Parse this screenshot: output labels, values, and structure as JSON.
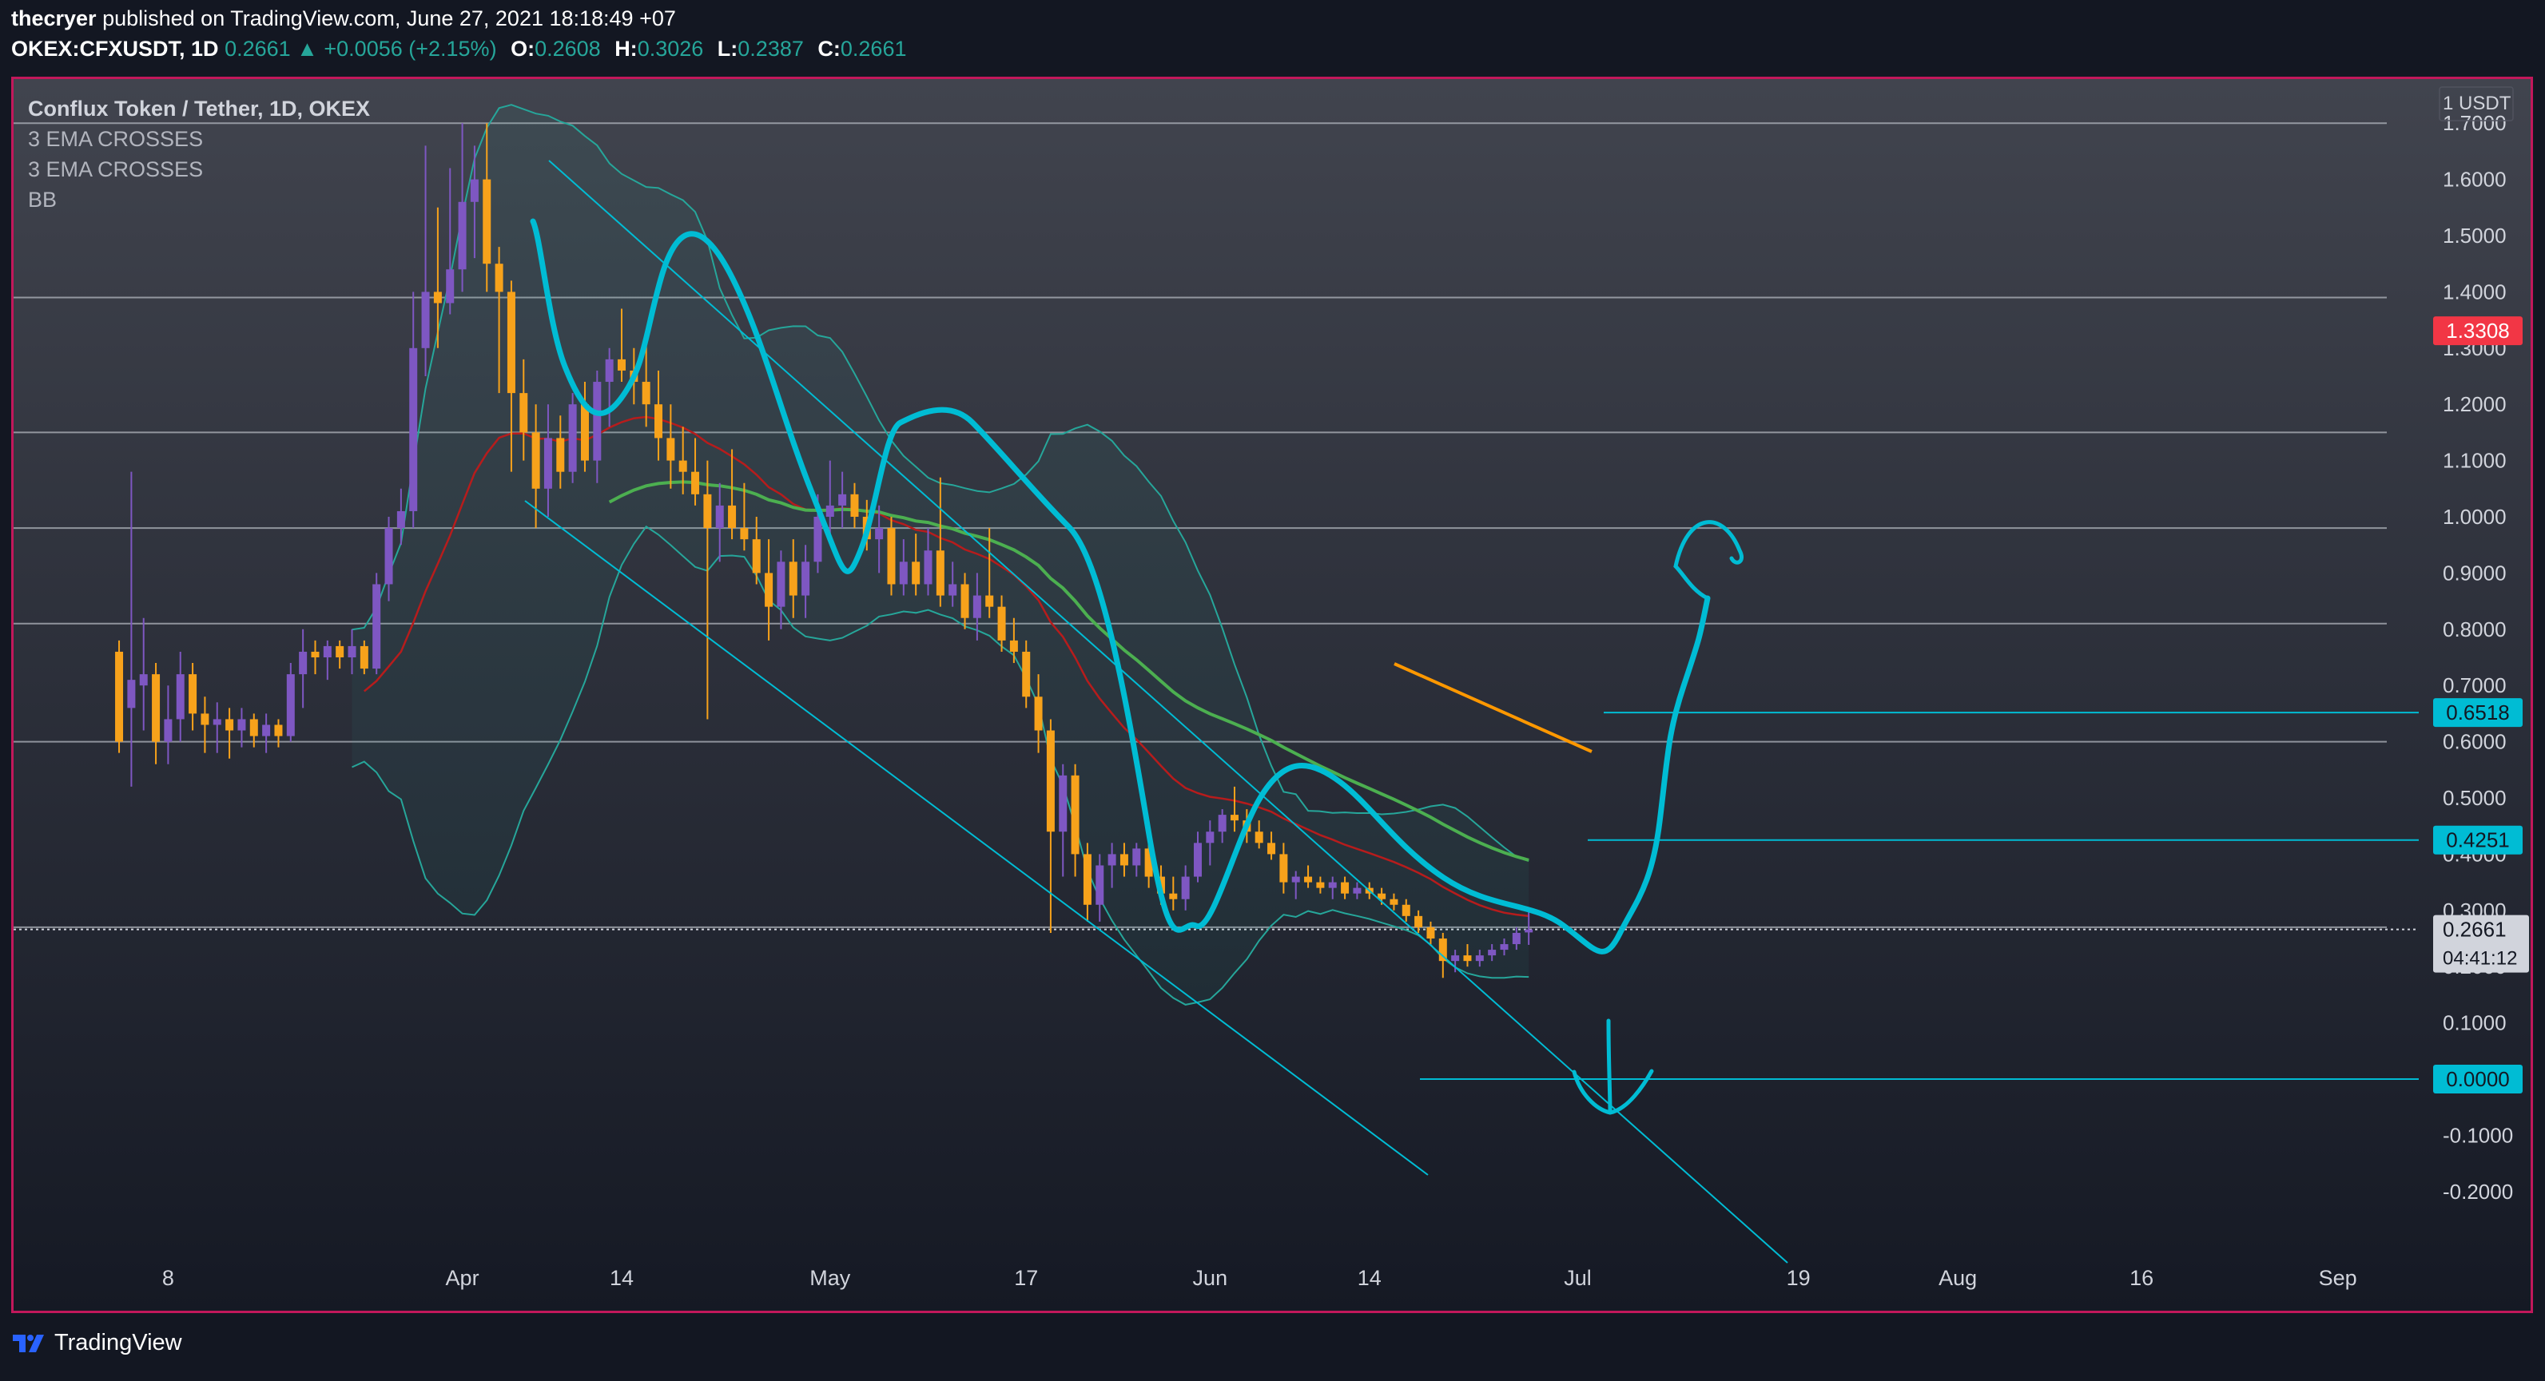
{
  "header": {
    "author": "thecryer",
    "published": " published on TradingView.com, June 27, 2021 18:18:49 +07",
    "symbol": "OKEX:CFXUSDT, 1D",
    "last": "0.2661",
    "change": "▲ +0.0056 (+2.15%)",
    "o_label": "O:",
    "o_value": "0.2608",
    "h_label": "H:",
    "h_value": "0.3026",
    "l_label": "L:",
    "l_value": "0.2387",
    "c_label": "C:",
    "c_value": "0.2661"
  },
  "legend": {
    "title": "Conflux Token / Tether, 1D, OKEX",
    "ind1": "3 EMA CROSSES",
    "ind2": "3 EMA CROSSES",
    "ind3": "BB"
  },
  "footer": {
    "brand": "TradingView"
  },
  "colors": {
    "bg_top": "#3b3e48",
    "bg_bottom": "#131722",
    "frame": "#c2185b",
    "candle_up": "#7e57c2",
    "candle_down": "#f7a21b",
    "drawing": "#00bcd4",
    "ema_green": "#4caf50",
    "ema_red": "#b71c1c",
    "bb": "#26a69a",
    "orange_line": "#ff9800",
    "red_label": "#f23645"
  },
  "chart_data": {
    "type": "candlestick",
    "title": "Conflux Token / Tether, 1D, OKEX",
    "currency_label": "USDT",
    "scale_label": "1",
    "ylim": [
      -0.24,
      1.78
    ],
    "y_ticks": [
      "1.7000",
      "1.6000",
      "1.5000",
      "1.4000",
      "1.3000",
      "1.2000",
      "1.1000",
      "1.0000",
      "0.9000",
      "0.8000",
      "0.7000",
      "0.6000",
      "0.5000",
      "0.4000",
      "0.3000",
      "0.2000",
      "0.1000",
      "0.0000",
      "-0.1000",
      "-0.2000"
    ],
    "x_ticks": [
      {
        "label": "8",
        "date": "2021-03-08"
      },
      {
        "label": "Apr",
        "date": "2021-04-01"
      },
      {
        "label": "14",
        "date": "2021-04-14"
      },
      {
        "label": "May",
        "date": "2021-05-01"
      },
      {
        "label": "17",
        "date": "2021-05-17"
      },
      {
        "label": "Jun",
        "date": "2021-06-01"
      },
      {
        "label": "14",
        "date": "2021-06-14"
      },
      {
        "label": "Jul",
        "date": "2021-07-01"
      },
      {
        "label": "19",
        "date": "2021-07-19"
      },
      {
        "label": "Aug",
        "date": "2021-08-01"
      },
      {
        "label": "16",
        "date": "2021-08-16"
      },
      {
        "label": "Sep",
        "date": "2021-09-01"
      }
    ],
    "x_range": [
      "2021-02-26",
      "2021-09-05"
    ],
    "last_price": "0.2661",
    "countdown": "04:41:12",
    "price_labels": [
      {
        "value": 1.3308,
        "text": "1.3308",
        "style": "red"
      },
      {
        "value": 0.6518,
        "text": "0.6518",
        "style": "cyan"
      },
      {
        "value": 0.4251,
        "text": "0.4251",
        "style": "cyan"
      },
      {
        "value": 0.0,
        "text": "0.0000",
        "style": "cyan"
      }
    ],
    "horizontal_levels": [
      1.7,
      1.39,
      1.15,
      0.98,
      0.81,
      0.6,
      0.27
    ],
    "candles": [
      {
        "d": "2021-03-04",
        "o": 0.76,
        "h": 0.78,
        "l": 0.58,
        "c": 0.6
      },
      {
        "d": "2021-03-05",
        "o": 0.66,
        "h": 1.08,
        "l": 0.52,
        "c": 0.71
      },
      {
        "d": "2021-03-06",
        "o": 0.7,
        "h": 0.82,
        "l": 0.62,
        "c": 0.72
      },
      {
        "d": "2021-03-07",
        "o": 0.72,
        "h": 0.74,
        "l": 0.56,
        "c": 0.6
      },
      {
        "d": "2021-03-08",
        "o": 0.6,
        "h": 0.7,
        "l": 0.56,
        "c": 0.64
      },
      {
        "d": "2021-03-09",
        "o": 0.64,
        "h": 0.76,
        "l": 0.6,
        "c": 0.72
      },
      {
        "d": "2021-03-10",
        "o": 0.72,
        "h": 0.74,
        "l": 0.62,
        "c": 0.65
      },
      {
        "d": "2021-03-11",
        "o": 0.65,
        "h": 0.68,
        "l": 0.58,
        "c": 0.63
      },
      {
        "d": "2021-03-12",
        "o": 0.63,
        "h": 0.67,
        "l": 0.58,
        "c": 0.64
      },
      {
        "d": "2021-03-13",
        "o": 0.64,
        "h": 0.66,
        "l": 0.57,
        "c": 0.62
      },
      {
        "d": "2021-03-14",
        "o": 0.62,
        "h": 0.66,
        "l": 0.59,
        "c": 0.64
      },
      {
        "d": "2021-03-15",
        "o": 0.64,
        "h": 0.65,
        "l": 0.59,
        "c": 0.61
      },
      {
        "d": "2021-03-16",
        "o": 0.61,
        "h": 0.65,
        "l": 0.58,
        "c": 0.63
      },
      {
        "d": "2021-03-17",
        "o": 0.63,
        "h": 0.64,
        "l": 0.59,
        "c": 0.61
      },
      {
        "d": "2021-03-18",
        "o": 0.61,
        "h": 0.74,
        "l": 0.6,
        "c": 0.72
      },
      {
        "d": "2021-03-19",
        "o": 0.72,
        "h": 0.8,
        "l": 0.66,
        "c": 0.76
      },
      {
        "d": "2021-03-20",
        "o": 0.76,
        "h": 0.78,
        "l": 0.72,
        "c": 0.75
      },
      {
        "d": "2021-03-21",
        "o": 0.75,
        "h": 0.78,
        "l": 0.71,
        "c": 0.77
      },
      {
        "d": "2021-03-22",
        "o": 0.77,
        "h": 0.78,
        "l": 0.73,
        "c": 0.75
      },
      {
        "d": "2021-03-23",
        "o": 0.75,
        "h": 0.8,
        "l": 0.72,
        "c": 0.77
      },
      {
        "d": "2021-03-24",
        "o": 0.77,
        "h": 0.78,
        "l": 0.72,
        "c": 0.73
      },
      {
        "d": "2021-03-25",
        "o": 0.73,
        "h": 0.9,
        "l": 0.72,
        "c": 0.88
      },
      {
        "d": "2021-03-26",
        "o": 0.88,
        "h": 1.0,
        "l": 0.85,
        "c": 0.98
      },
      {
        "d": "2021-03-27",
        "o": 0.98,
        "h": 1.05,
        "l": 0.95,
        "c": 1.01
      },
      {
        "d": "2021-03-28",
        "o": 1.01,
        "h": 1.4,
        "l": 0.98,
        "c": 1.3
      },
      {
        "d": "2021-03-29",
        "o": 1.3,
        "h": 1.66,
        "l": 1.25,
        "c": 1.4
      },
      {
        "d": "2021-03-30",
        "o": 1.4,
        "h": 1.55,
        "l": 1.3,
        "c": 1.38
      },
      {
        "d": "2021-03-31",
        "o": 1.38,
        "h": 1.62,
        "l": 1.36,
        "c": 1.44
      },
      {
        "d": "2021-04-01",
        "o": 1.44,
        "h": 1.7,
        "l": 1.4,
        "c": 1.56
      },
      {
        "d": "2021-04-02",
        "o": 1.56,
        "h": 1.66,
        "l": 1.46,
        "c": 1.6
      },
      {
        "d": "2021-04-03",
        "o": 1.6,
        "h": 1.7,
        "l": 1.4,
        "c": 1.45
      },
      {
        "d": "2021-04-04",
        "o": 1.45,
        "h": 1.48,
        "l": 1.22,
        "c": 1.4
      },
      {
        "d": "2021-04-05",
        "o": 1.4,
        "h": 1.42,
        "l": 1.08,
        "c": 1.22
      },
      {
        "d": "2021-04-06",
        "o": 1.22,
        "h": 1.28,
        "l": 1.1,
        "c": 1.15
      },
      {
        "d": "2021-04-07",
        "o": 1.15,
        "h": 1.2,
        "l": 0.98,
        "c": 1.05
      },
      {
        "d": "2021-04-08",
        "o": 1.05,
        "h": 1.2,
        "l": 1.0,
        "c": 1.14
      },
      {
        "d": "2021-04-09",
        "o": 1.14,
        "h": 1.18,
        "l": 1.05,
        "c": 1.08
      },
      {
        "d": "2021-04-10",
        "o": 1.08,
        "h": 1.22,
        "l": 1.06,
        "c": 1.2
      },
      {
        "d": "2021-04-11",
        "o": 1.2,
        "h": 1.24,
        "l": 1.08,
        "c": 1.1
      },
      {
        "d": "2021-04-12",
        "o": 1.1,
        "h": 1.26,
        "l": 1.06,
        "c": 1.24
      },
      {
        "d": "2021-04-13",
        "o": 1.24,
        "h": 1.3,
        "l": 1.16,
        "c": 1.28
      },
      {
        "d": "2021-04-14",
        "o": 1.28,
        "h": 1.37,
        "l": 1.24,
        "c": 1.26
      },
      {
        "d": "2021-04-15",
        "o": 1.26,
        "h": 1.3,
        "l": 1.2,
        "c": 1.24
      },
      {
        "d": "2021-04-16",
        "o": 1.24,
        "h": 1.32,
        "l": 1.16,
        "c": 1.2
      },
      {
        "d": "2021-04-17",
        "o": 1.2,
        "h": 1.26,
        "l": 1.1,
        "c": 1.14
      },
      {
        "d": "2021-04-18",
        "o": 1.14,
        "h": 1.2,
        "l": 1.05,
        "c": 1.1
      },
      {
        "d": "2021-04-19",
        "o": 1.1,
        "h": 1.16,
        "l": 1.04,
        "c": 1.08
      },
      {
        "d": "2021-04-20",
        "o": 1.08,
        "h": 1.14,
        "l": 1.02,
        "c": 1.04
      },
      {
        "d": "2021-04-21",
        "o": 1.04,
        "h": 1.1,
        "l": 0.64,
        "c": 0.98
      },
      {
        "d": "2021-04-22",
        "o": 0.98,
        "h": 1.06,
        "l": 0.92,
        "c": 1.02
      },
      {
        "d": "2021-04-23",
        "o": 1.02,
        "h": 1.12,
        "l": 0.96,
        "c": 0.98
      },
      {
        "d": "2021-04-24",
        "o": 0.98,
        "h": 1.06,
        "l": 0.94,
        "c": 0.96
      },
      {
        "d": "2021-04-25",
        "o": 0.96,
        "h": 1.0,
        "l": 0.88,
        "c": 0.9
      },
      {
        "d": "2021-04-26",
        "o": 0.9,
        "h": 0.96,
        "l": 0.78,
        "c": 0.84
      },
      {
        "d": "2021-04-27",
        "o": 0.84,
        "h": 0.94,
        "l": 0.8,
        "c": 0.92
      },
      {
        "d": "2021-04-28",
        "o": 0.92,
        "h": 0.96,
        "l": 0.82,
        "c": 0.86
      },
      {
        "d": "2021-04-29",
        "o": 0.86,
        "h": 0.95,
        "l": 0.82,
        "c": 0.92
      },
      {
        "d": "2021-04-30",
        "o": 0.92,
        "h": 1.04,
        "l": 0.9,
        "c": 1.0
      },
      {
        "d": "2021-05-01",
        "o": 1.0,
        "h": 1.1,
        "l": 0.96,
        "c": 1.02
      },
      {
        "d": "2021-05-02",
        "o": 1.02,
        "h": 1.08,
        "l": 0.98,
        "c": 1.04
      },
      {
        "d": "2021-05-03",
        "o": 1.04,
        "h": 1.06,
        "l": 0.98,
        "c": 1.0
      },
      {
        "d": "2021-05-04",
        "o": 1.0,
        "h": 1.03,
        "l": 0.94,
        "c": 0.96
      },
      {
        "d": "2021-05-05",
        "o": 0.96,
        "h": 1.02,
        "l": 0.9,
        "c": 0.98
      },
      {
        "d": "2021-05-06",
        "o": 0.98,
        "h": 1.0,
        "l": 0.86,
        "c": 0.88
      },
      {
        "d": "2021-05-07",
        "o": 0.88,
        "h": 0.96,
        "l": 0.86,
        "c": 0.92
      },
      {
        "d": "2021-05-08",
        "o": 0.92,
        "h": 0.97,
        "l": 0.86,
        "c": 0.88
      },
      {
        "d": "2021-05-09",
        "o": 0.88,
        "h": 0.98,
        "l": 0.86,
        "c": 0.94
      },
      {
        "d": "2021-05-10",
        "o": 0.94,
        "h": 1.07,
        "l": 0.84,
        "c": 0.86
      },
      {
        "d": "2021-05-11",
        "o": 0.86,
        "h": 0.92,
        "l": 0.84,
        "c": 0.88
      },
      {
        "d": "2021-05-12",
        "o": 0.88,
        "h": 0.9,
        "l": 0.8,
        "c": 0.82
      },
      {
        "d": "2021-05-13",
        "o": 0.82,
        "h": 0.9,
        "l": 0.78,
        "c": 0.86
      },
      {
        "d": "2021-05-14",
        "o": 0.86,
        "h": 0.98,
        "l": 0.82,
        "c": 0.84
      },
      {
        "d": "2021-05-15",
        "o": 0.84,
        "h": 0.86,
        "l": 0.76,
        "c": 0.78
      },
      {
        "d": "2021-05-16",
        "o": 0.78,
        "h": 0.82,
        "l": 0.74,
        "c": 0.76
      },
      {
        "d": "2021-05-17",
        "o": 0.76,
        "h": 0.78,
        "l": 0.66,
        "c": 0.68
      },
      {
        "d": "2021-05-18",
        "o": 0.68,
        "h": 0.72,
        "l": 0.58,
        "c": 0.62
      },
      {
        "d": "2021-05-19",
        "o": 0.62,
        "h": 0.64,
        "l": 0.26,
        "c": 0.44
      },
      {
        "d": "2021-05-20",
        "o": 0.44,
        "h": 0.56,
        "l": 0.36,
        "c": 0.54
      },
      {
        "d": "2021-05-21",
        "o": 0.54,
        "h": 0.56,
        "l": 0.36,
        "c": 0.4
      },
      {
        "d": "2021-05-22",
        "o": 0.4,
        "h": 0.42,
        "l": 0.28,
        "c": 0.31
      },
      {
        "d": "2021-05-23",
        "o": 0.31,
        "h": 0.4,
        "l": 0.28,
        "c": 0.38
      },
      {
        "d": "2021-05-24",
        "o": 0.38,
        "h": 0.42,
        "l": 0.34,
        "c": 0.4
      },
      {
        "d": "2021-05-25",
        "o": 0.4,
        "h": 0.42,
        "l": 0.36,
        "c": 0.38
      },
      {
        "d": "2021-05-26",
        "o": 0.38,
        "h": 0.42,
        "l": 0.36,
        "c": 0.41
      },
      {
        "d": "2021-05-27",
        "o": 0.41,
        "h": 0.42,
        "l": 0.34,
        "c": 0.36
      },
      {
        "d": "2021-05-28",
        "o": 0.36,
        "h": 0.38,
        "l": 0.31,
        "c": 0.33
      },
      {
        "d": "2021-05-29",
        "o": 0.33,
        "h": 0.36,
        "l": 0.3,
        "c": 0.32
      },
      {
        "d": "2021-05-30",
        "o": 0.32,
        "h": 0.38,
        "l": 0.3,
        "c": 0.36
      },
      {
        "d": "2021-05-31",
        "o": 0.36,
        "h": 0.44,
        "l": 0.35,
        "c": 0.42
      },
      {
        "d": "2021-06-01",
        "o": 0.42,
        "h": 0.46,
        "l": 0.38,
        "c": 0.44
      },
      {
        "d": "2021-06-02",
        "o": 0.44,
        "h": 0.48,
        "l": 0.42,
        "c": 0.47
      },
      {
        "d": "2021-06-03",
        "o": 0.47,
        "h": 0.52,
        "l": 0.44,
        "c": 0.46
      },
      {
        "d": "2021-06-04",
        "o": 0.46,
        "h": 0.48,
        "l": 0.42,
        "c": 0.44
      },
      {
        "d": "2021-06-05",
        "o": 0.44,
        "h": 0.46,
        "l": 0.41,
        "c": 0.42
      },
      {
        "d": "2021-06-06",
        "o": 0.42,
        "h": 0.44,
        "l": 0.39,
        "c": 0.4
      },
      {
        "d": "2021-06-07",
        "o": 0.4,
        "h": 0.42,
        "l": 0.33,
        "c": 0.35
      },
      {
        "d": "2021-06-08",
        "o": 0.35,
        "h": 0.37,
        "l": 0.32,
        "c": 0.36
      },
      {
        "d": "2021-06-09",
        "o": 0.36,
        "h": 0.38,
        "l": 0.34,
        "c": 0.35
      },
      {
        "d": "2021-06-10",
        "o": 0.35,
        "h": 0.36,
        "l": 0.33,
        "c": 0.34
      },
      {
        "d": "2021-06-11",
        "o": 0.34,
        "h": 0.36,
        "l": 0.32,
        "c": 0.35
      },
      {
        "d": "2021-06-12",
        "o": 0.35,
        "h": 0.36,
        "l": 0.32,
        "c": 0.33
      },
      {
        "d": "2021-06-13",
        "o": 0.33,
        "h": 0.35,
        "l": 0.32,
        "c": 0.34
      },
      {
        "d": "2021-06-14",
        "o": 0.34,
        "h": 0.35,
        "l": 0.32,
        "c": 0.33
      },
      {
        "d": "2021-06-15",
        "o": 0.33,
        "h": 0.34,
        "l": 0.31,
        "c": 0.32
      },
      {
        "d": "2021-06-16",
        "o": 0.32,
        "h": 0.33,
        "l": 0.3,
        "c": 0.31
      },
      {
        "d": "2021-06-17",
        "o": 0.31,
        "h": 0.32,
        "l": 0.28,
        "c": 0.29
      },
      {
        "d": "2021-06-18",
        "o": 0.29,
        "h": 0.3,
        "l": 0.26,
        "c": 0.27
      },
      {
        "d": "2021-06-19",
        "o": 0.27,
        "h": 0.28,
        "l": 0.24,
        "c": 0.25
      },
      {
        "d": "2021-06-20",
        "o": 0.25,
        "h": 0.26,
        "l": 0.18,
        "c": 0.21
      },
      {
        "d": "2021-06-21",
        "o": 0.21,
        "h": 0.23,
        "l": 0.19,
        "c": 0.22
      },
      {
        "d": "2021-06-22",
        "o": 0.22,
        "h": 0.24,
        "l": 0.2,
        "c": 0.21
      },
      {
        "d": "2021-06-23",
        "o": 0.21,
        "h": 0.23,
        "l": 0.2,
        "c": 0.22
      },
      {
        "d": "2021-06-24",
        "o": 0.22,
        "h": 0.24,
        "l": 0.21,
        "c": 0.23
      },
      {
        "d": "2021-06-25",
        "o": 0.23,
        "h": 0.25,
        "l": 0.22,
        "c": 0.24
      },
      {
        "d": "2021-06-26",
        "o": 0.24,
        "h": 0.27,
        "l": 0.23,
        "c": 0.26
      },
      {
        "d": "2021-06-27",
        "o": 0.2608,
        "h": 0.3026,
        "l": 0.2387,
        "c": 0.2661
      }
    ]
  }
}
